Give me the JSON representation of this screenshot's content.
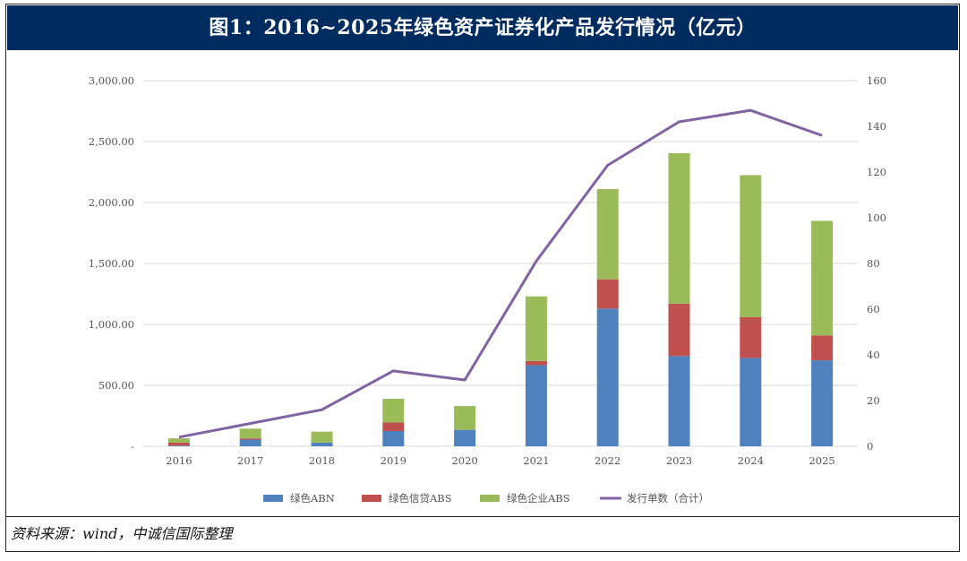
{
  "header": {
    "title": "图1：2016~2025年绿色资产证券化产品发行情况（亿元）"
  },
  "source": "资料来源：wind，中诚信国际整理",
  "chart_data": {
    "type": "bar",
    "stacked": true,
    "categories": [
      "2016",
      "2017",
      "2018",
      "2019",
      "2020",
      "2021",
      "2022",
      "2023",
      "2024",
      "2025"
    ],
    "y_left": {
      "ylim": [
        0,
        3000
      ],
      "ticks": [
        "-",
        "500.00",
        "1,000.00",
        "1,500.00",
        "2,000.00",
        "2,500.00",
        "3,000.00"
      ],
      "tick_values": [
        0,
        500,
        1000,
        1500,
        2000,
        2500,
        3000
      ]
    },
    "y_right": {
      "ylim": [
        0,
        160
      ],
      "ticks": [
        "0",
        "20",
        "40",
        "60",
        "80",
        "100",
        "120",
        "140",
        "160"
      ],
      "tick_values": [
        0,
        20,
        40,
        60,
        80,
        100,
        120,
        140,
        160
      ]
    },
    "series": [
      {
        "name": "绿色ABN",
        "type": "bar",
        "axis": "left",
        "color": "#4f81bd",
        "values": [
          5,
          55,
          30,
          125,
          135,
          665,
          1130,
          740,
          725,
          705
        ]
      },
      {
        "name": "绿色信贷ABS",
        "type": "bar",
        "axis": "left",
        "color": "#c0504d",
        "values": [
          25,
          10,
          0,
          70,
          0,
          35,
          240,
          430,
          335,
          205
        ]
      },
      {
        "name": "绿色企业ABS",
        "type": "bar",
        "axis": "left",
        "color": "#9bbb59",
        "values": [
          35,
          80,
          90,
          195,
          195,
          530,
          740,
          1235,
          1165,
          940
        ]
      },
      {
        "name": "发行单数（合计）",
        "type": "line",
        "axis": "right",
        "color": "#8064a2",
        "values": [
          4,
          10,
          16,
          33,
          29,
          81,
          123,
          142,
          147,
          136
        ]
      }
    ],
    "grid": true,
    "legend": "bottom"
  }
}
